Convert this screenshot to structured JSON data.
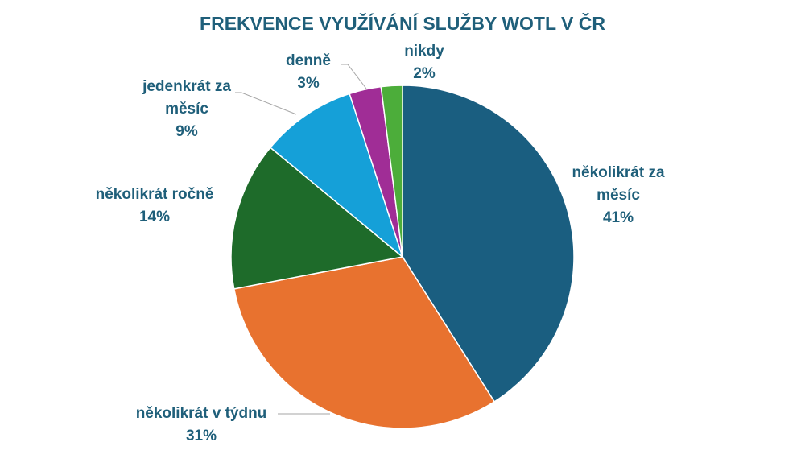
{
  "chart_data": {
    "type": "pie",
    "title": "FREKVENCE VYUŽÍVÁNÍ SLUŽBY WOTL V ČR",
    "categories": [
      "několikrát za měsíc",
      "několikrát v týdnu",
      "několikrát ročně",
      "jedenkrát za měsíc",
      "denně",
      "nikdy"
    ],
    "values": [
      41,
      31,
      14,
      9,
      3,
      2
    ],
    "value_labels": [
      "41%",
      "31%",
      "14%",
      "9%",
      "3%",
      "2%"
    ],
    "colors": [
      "#1a5e80",
      "#e8722f",
      "#1e6b2a",
      "#15a0d8",
      "#a02d96",
      "#4cad3a"
    ]
  }
}
